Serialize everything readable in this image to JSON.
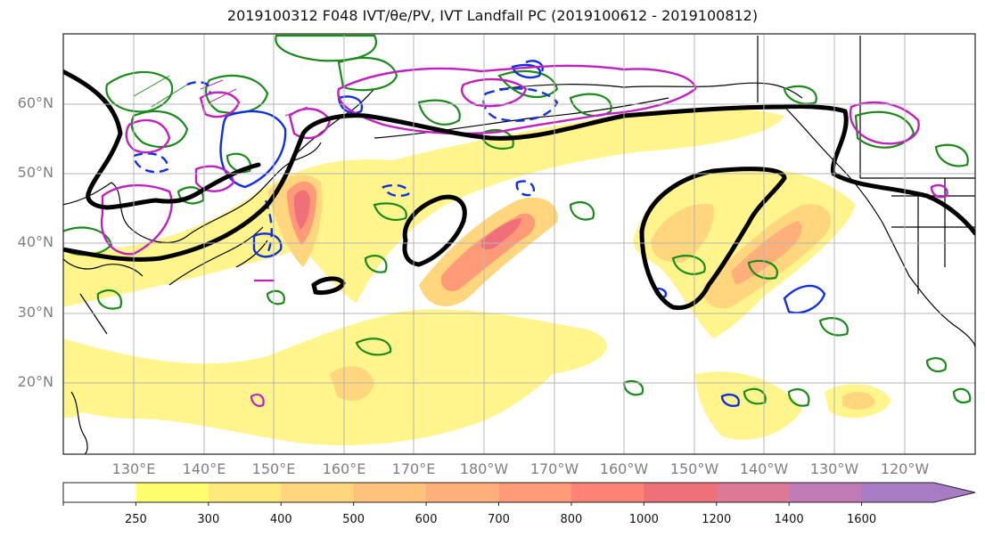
{
  "title": "2019100312 F048 IVT/θe/PV, IVT Landfall PC (2019100612 - 2019100812)",
  "lat_labels": [
    "60°N",
    "50°N",
    "40°N",
    "30°N",
    "20°N"
  ],
  "lon_labels": [
    "130°E",
    "140°E",
    "150°E",
    "160°E",
    "170°E",
    "180°W",
    "170°W",
    "160°W",
    "150°W",
    "140°W",
    "130°W",
    "120°W"
  ],
  "colorbar": {
    "ticks": [
      "250",
      "300",
      "400",
      "500",
      "600",
      "700",
      "800",
      "1000",
      "1200",
      "1400",
      "1600"
    ],
    "colors": [
      "#ffffff",
      "#ffff6e",
      "#ffe97a",
      "#ffd67e",
      "#ffc27c",
      "#ffb07a",
      "#ff9a78",
      "#ff8276",
      "#f0707a",
      "#dd7896",
      "#c07ab4",
      "#a87cc4"
    ],
    "extend": "max"
  },
  "colors": {
    "ivt_low": "#fff58c",
    "ivt_mid": "#ffc27c",
    "ivt_high": "#f0707a",
    "landfall_pc_contour": "#000000",
    "pv_contour": "#c020c0",
    "theta_e_warm": "#1a8a1a",
    "theta_e_cold": "#1030e0",
    "coastline": "#000000",
    "grid": "#b4b4b4"
  }
}
